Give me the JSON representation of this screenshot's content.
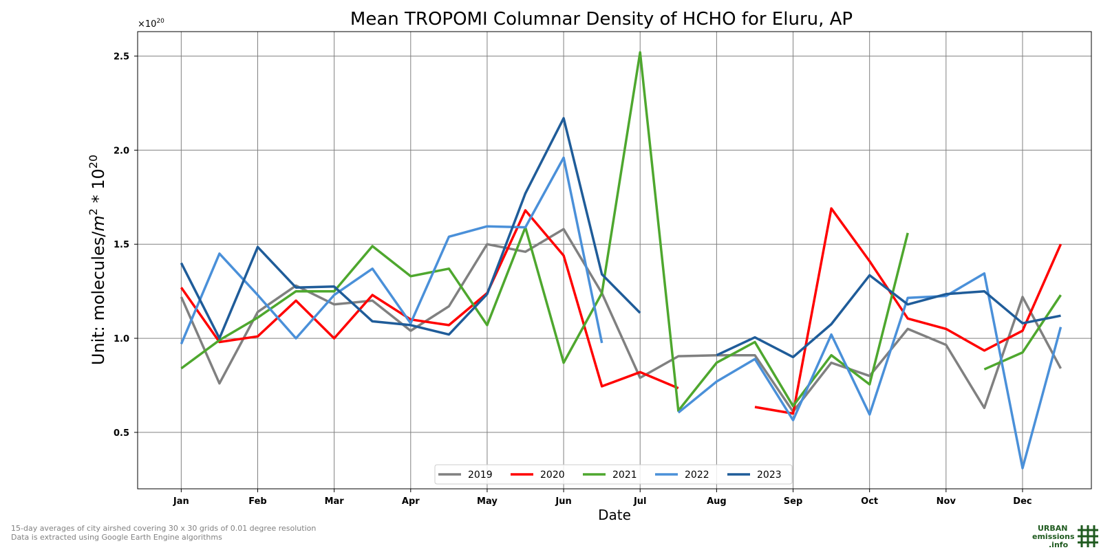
{
  "chart_data": {
    "type": "line",
    "title": "Mean TROPOMI Columnar Density of HCHO for Eluru, AP",
    "xlabel": "Date",
    "ylabel_prefix": "Unit: molecules/",
    "ylabel_unit": "m",
    "ylabel_sup": "2",
    "ylabel_mid": " * 10",
    "ylabel_sup2": "20",
    "offset_text_base": "×10",
    "offset_text_exp": "20",
    "x_ticks": [
      "Jan",
      "Feb",
      "Mar",
      "Apr",
      "May",
      "Jun",
      "Jul",
      "Aug",
      "Sep",
      "Oct",
      "Nov",
      "Dec"
    ],
    "y_ticks": [
      "0.5",
      "1.0",
      "1.5",
      "2.0",
      "2.5"
    ],
    "y_tick_values": [
      0.5,
      1.0,
      1.5,
      2.0,
      2.5
    ],
    "xlim": [
      0.43,
      12.9
    ],
    "ylim": [
      0.2,
      2.63
    ],
    "grid": true,
    "legend_position": "bottom-center",
    "x": [
      1,
      1.5,
      2,
      2.5,
      3,
      3.5,
      4,
      4.5,
      5,
      5.5,
      6,
      6.5,
      7,
      7.5,
      8,
      8.5,
      9,
      9.5,
      10,
      10.5,
      11,
      11.5,
      12,
      12.5
    ],
    "series": [
      {
        "name": "2019",
        "color": "#808080",
        "values": [
          1.22,
          0.76,
          1.14,
          1.28,
          1.18,
          1.2,
          1.04,
          1.17,
          1.5,
          1.46,
          1.58,
          1.24,
          0.79,
          0.905,
          0.91,
          0.91,
          0.61,
          0.87,
          0.8,
          1.05,
          0.965,
          0.63,
          1.22,
          0.84
        ]
      },
      {
        "name": "2020",
        "color": "#ff0000",
        "values": [
          1.27,
          0.98,
          1.01,
          1.2,
          1.0,
          1.23,
          1.1,
          1.07,
          1.24,
          1.68,
          1.44,
          0.745,
          0.82,
          0.735,
          null,
          0.635,
          0.6,
          1.69,
          1.41,
          1.105,
          1.05,
          0.935,
          1.04,
          1.5
        ]
      },
      {
        "name": "2021",
        "color": "#4ea72e",
        "values": [
          0.84,
          0.99,
          1.11,
          1.25,
          1.25,
          1.49,
          1.33,
          1.37,
          1.07,
          1.59,
          0.87,
          1.24,
          2.52,
          0.615,
          0.87,
          0.98,
          0.64,
          0.91,
          0.755,
          1.56,
          null,
          0.835,
          0.925,
          1.23
        ]
      },
      {
        "name": "2022",
        "color": "#4a90d9",
        "values": [
          0.97,
          1.45,
          1.23,
          1.0,
          1.23,
          1.37,
          1.08,
          1.54,
          1.595,
          1.59,
          1.96,
          0.975,
          null,
          0.605,
          0.77,
          0.89,
          0.565,
          1.02,
          0.595,
          1.215,
          1.225,
          1.345,
          0.31,
          1.06
        ]
      },
      {
        "name": "2023",
        "color": "#1f5c99",
        "values": [
          1.4,
          1.0,
          1.485,
          1.27,
          1.275,
          1.09,
          1.07,
          1.02,
          1.235,
          1.77,
          2.17,
          1.34,
          1.135,
          null,
          0.91,
          1.005,
          0.9,
          1.075,
          1.335,
          1.18,
          1.235,
          1.25,
          1.08,
          1.12
        ]
      }
    ]
  },
  "footnotes": {
    "line1": "15-day averages of city airshed covering 30 x 30 grids of 0.01 degree resolution",
    "line2": "Data is extracted using Google Earth Engine algorithms"
  },
  "logo": {
    "line1": "URBAN",
    "line2": "emissions",
    "line3": ".info",
    "color": "#1f5a1f"
  }
}
